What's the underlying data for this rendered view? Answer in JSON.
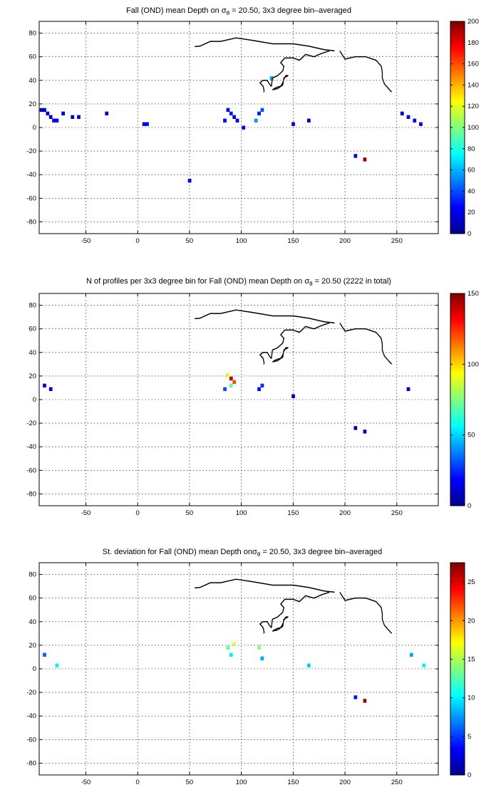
{
  "chart_data": [
    {
      "type": "heatmap",
      "title_main": "Fall (OND) mean Depth on ",
      "title_sigma": "σ",
      "title_sub": "θ",
      "title_rest": " = 20.50, 3x3 degree bin–averaged",
      "xlim": [
        -95,
        290
      ],
      "ylim": [
        -90,
        90
      ],
      "xticks": [
        -50,
        0,
        50,
        100,
        150,
        200,
        250
      ],
      "yticks": [
        -80,
        -60,
        -40,
        -20,
        0,
        20,
        40,
        60,
        80
      ],
      "grid": true,
      "colorbar": {
        "min": 0,
        "max": 200,
        "ticks": [
          0,
          20,
          40,
          60,
          80,
          100,
          120,
          140,
          160,
          180,
          200
        ]
      },
      "cells": [
        {
          "lon": -93,
          "lat": 15,
          "value": 10
        },
        {
          "lon": -90,
          "lat": 15,
          "value": 15
        },
        {
          "lon": -87,
          "lat": 12,
          "value": 20
        },
        {
          "lon": -84,
          "lat": 9,
          "value": 15
        },
        {
          "lon": -81,
          "lat": 6,
          "value": 25
        },
        {
          "lon": -78,
          "lat": 6,
          "value": 20
        },
        {
          "lon": -72,
          "lat": 12,
          "value": 15
        },
        {
          "lon": -63,
          "lat": 9,
          "value": 10
        },
        {
          "lon": -57,
          "lat": 9,
          "value": 20
        },
        {
          "lon": -30,
          "lat": 12,
          "value": 15
        },
        {
          "lon": 6,
          "lat": 3,
          "value": 20
        },
        {
          "lon": 9,
          "lat": 3,
          "value": 25
        },
        {
          "lon": 87,
          "lat": 15,
          "value": 25
        },
        {
          "lon": 90,
          "lat": 12,
          "value": 30
        },
        {
          "lon": 93,
          "lat": 9,
          "value": 20
        },
        {
          "lon": 84,
          "lat": 6,
          "value": 20
        },
        {
          "lon": 96,
          "lat": 6,
          "value": 25
        },
        {
          "lon": 102,
          "lat": 0,
          "value": 20
        },
        {
          "lon": 117,
          "lat": 12,
          "value": 30
        },
        {
          "lon": 120,
          "lat": 15,
          "value": 40
        },
        {
          "lon": 114,
          "lat": 6,
          "value": 55
        },
        {
          "lon": 129,
          "lat": 42,
          "value": 60
        },
        {
          "lon": 150,
          "lat": 3,
          "value": 15
        },
        {
          "lon": 165,
          "lat": 6,
          "value": 10
        },
        {
          "lon": 210,
          "lat": -24,
          "value": 20
        },
        {
          "lon": 219,
          "lat": -27,
          "value": 195
        },
        {
          "lon": 255,
          "lat": 12,
          "value": 15
        },
        {
          "lon": 261,
          "lat": 9,
          "value": 25
        },
        {
          "lon": 267,
          "lat": 6,
          "value": 20
        },
        {
          "lon": 273,
          "lat": 3,
          "value": 25
        },
        {
          "lon": 50,
          "lat": -45,
          "value": 20
        }
      ]
    },
    {
      "type": "heatmap",
      "title_main": "N of profiles per 3x3 degree bin for Fall (OND) mean Depth on ",
      "title_sigma": "σ",
      "title_sub": "θ",
      "title_rest": " = 20.50 (2222 in total)",
      "xlim": [
        -95,
        290
      ],
      "ylim": [
        -90,
        90
      ],
      "xticks": [
        -50,
        0,
        50,
        100,
        150,
        200,
        250
      ],
      "yticks": [
        -80,
        -60,
        -40,
        -20,
        0,
        20,
        40,
        60,
        80
      ],
      "grid": true,
      "colorbar": {
        "min": 0,
        "max": 150,
        "ticks": [
          0,
          50,
          100,
          150
        ]
      },
      "cells": [
        {
          "lon": -90,
          "lat": 12,
          "value": 15
        },
        {
          "lon": -84,
          "lat": 9,
          "value": 10
        },
        {
          "lon": 90,
          "lat": 18,
          "value": 140
        },
        {
          "lon": 87,
          "lat": 21,
          "value": 90
        },
        {
          "lon": 93,
          "lat": 15,
          "value": 120
        },
        {
          "lon": 90,
          "lat": 12,
          "value": 70
        },
        {
          "lon": 84,
          "lat": 9,
          "value": 30
        },
        {
          "lon": 117,
          "lat": 9,
          "value": 20
        },
        {
          "lon": 120,
          "lat": 12,
          "value": 25
        },
        {
          "lon": 150,
          "lat": 3,
          "value": 5
        },
        {
          "lon": 261,
          "lat": 9,
          "value": 10
        },
        {
          "lon": 210,
          "lat": -24,
          "value": 5
        },
        {
          "lon": 219,
          "lat": -27,
          "value": 5
        }
      ]
    },
    {
      "type": "heatmap",
      "title_main": "St. deviation for Fall (OND) mean Depth on",
      "title_sigma": "σ",
      "title_sub": "θ",
      "title_rest": " = 20.50, 3x3 degree bin–averaged",
      "xlim": [
        -95,
        290
      ],
      "ylim": [
        -90,
        90
      ],
      "xticks": [
        -50,
        0,
        50,
        100,
        150,
        200,
        250
      ],
      "yticks": [
        -80,
        -60,
        -40,
        -20,
        0,
        20,
        40,
        60,
        80
      ],
      "grid": true,
      "colorbar": {
        "min": 0,
        "max": 27.5,
        "ticks": [
          0,
          5,
          10,
          15,
          20,
          25
        ]
      },
      "cells": [
        {
          "lon": -90,
          "lat": 12,
          "value": 6
        },
        {
          "lon": -78,
          "lat": 3,
          "value": 10
        },
        {
          "lon": 87,
          "lat": 18,
          "value": 13
        },
        {
          "lon": 90,
          "lat": 12,
          "value": 10
        },
        {
          "lon": 93,
          "lat": 21,
          "value": 16
        },
        {
          "lon": 117,
          "lat": 18,
          "value": 14
        },
        {
          "lon": 120,
          "lat": 9,
          "value": 8
        },
        {
          "lon": 165,
          "lat": 3,
          "value": 9
        },
        {
          "lon": 264,
          "lat": 12,
          "value": 8
        },
        {
          "lon": 276,
          "lat": 3,
          "value": 10
        },
        {
          "lon": 219,
          "lat": -27,
          "value": 27
        },
        {
          "lon": 210,
          "lat": -24,
          "value": 4
        }
      ]
    }
  ],
  "colors": {
    "jet": [
      "#00008f",
      "#0000ff",
      "#0080ff",
      "#00ffff",
      "#80ff80",
      "#ffff00",
      "#ff8000",
      "#ff0000",
      "#800000"
    ]
  }
}
